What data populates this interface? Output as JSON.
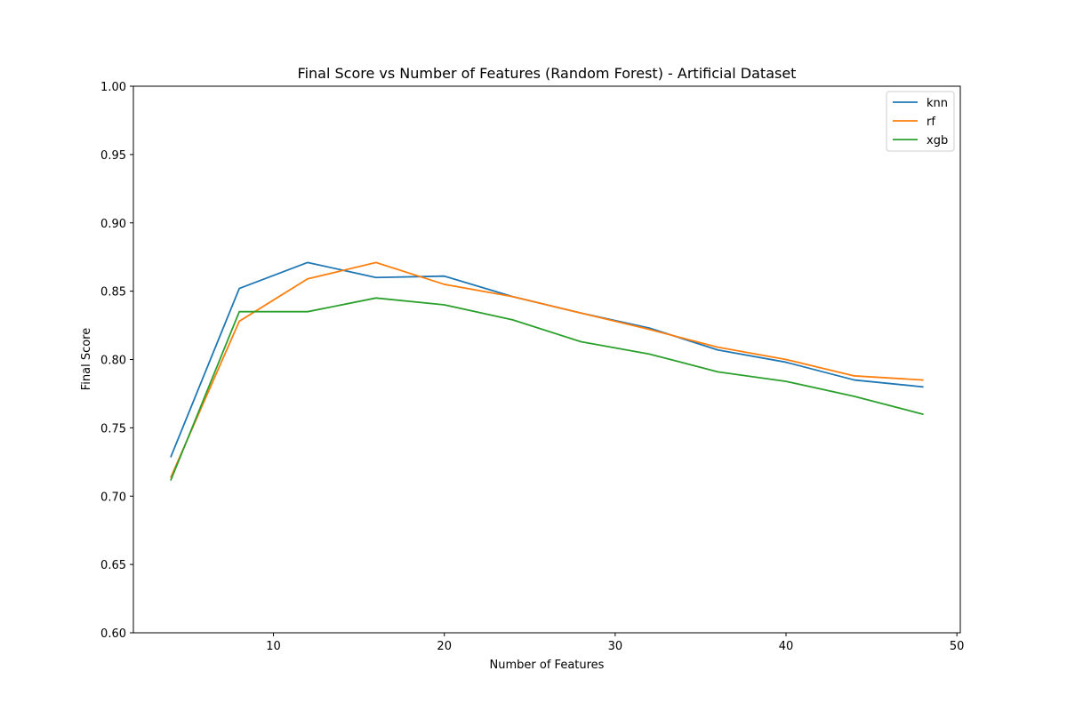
{
  "chart_data": {
    "type": "line",
    "title": "Final Score vs Number of Features (Random Forest) - Artificial Dataset",
    "xlabel": "Number of Features",
    "ylabel": "Final Score",
    "xlim": [
      1.8,
      50.2
    ],
    "ylim": [
      0.6,
      1.0
    ],
    "x_ticks": [
      10,
      20,
      30,
      40,
      50
    ],
    "y_ticks": [
      0.6,
      0.65,
      0.7,
      0.75,
      0.8,
      0.85,
      0.9,
      0.95,
      1.0
    ],
    "x_tick_labels": [
      "10",
      "20",
      "30",
      "40",
      "50"
    ],
    "y_tick_labels": [
      "0.60",
      "0.65",
      "0.70",
      "0.75",
      "0.80",
      "0.85",
      "0.90",
      "0.95",
      "1.00"
    ],
    "grid": false,
    "legend_position": "top-right",
    "x": [
      4,
      8,
      12,
      16,
      20,
      24,
      28,
      32,
      36,
      40,
      44,
      48
    ],
    "series": [
      {
        "name": "knn",
        "color": "#1f77b4",
        "values": [
          0.729,
          0.852,
          0.871,
          0.86,
          0.861,
          0.846,
          0.834,
          0.823,
          0.807,
          0.798,
          0.785,
          0.78
        ]
      },
      {
        "name": "rf",
        "color": "#ff7f0e",
        "values": [
          0.714,
          0.828,
          0.859,
          0.871,
          0.855,
          0.846,
          0.834,
          0.822,
          0.809,
          0.8,
          0.788,
          0.785
        ]
      },
      {
        "name": "xgb",
        "color": "#2ca02c",
        "values": [
          0.712,
          0.835,
          0.835,
          0.845,
          0.84,
          0.829,
          0.813,
          0.804,
          0.791,
          0.784,
          0.773,
          0.76
        ]
      }
    ]
  }
}
